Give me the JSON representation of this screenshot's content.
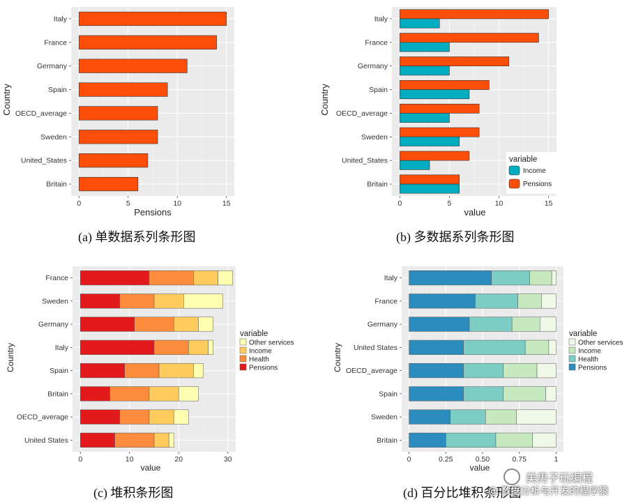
{
  "captions": {
    "a": "(a)  单数据系列条形图",
    "b": "(b)  多数据系列条形图",
    "c": "(c)  堆积条形图",
    "d": "(d)  百分比堆积条形图"
  },
  "watermark": {
    "line1": "美男子玩编程",
    "line2": "@ 数据分析与开发的程序猿"
  },
  "chart_data": [
    {
      "id": "a",
      "type": "bar",
      "orientation": "horizontal",
      "categories": [
        "Italy",
        "France",
        "Germany",
        "Spain",
        "OECD_average",
        "Sweden",
        "United_States",
        "Britain"
      ],
      "series": [
        {
          "name": "Pensions",
          "values": [
            15,
            14,
            11,
            9,
            8,
            8,
            7,
            6
          ]
        }
      ],
      "xlabel": "Pensions",
      "ylabel": "Country",
      "xlim": [
        -0.8,
        15.8
      ],
      "xticks": [
        0,
        5,
        10,
        15
      ],
      "xtick_labels": [
        "0",
        "5",
        "10",
        "15"
      ],
      "grid": true,
      "legend": "none",
      "colors": {
        "Pensions": "#fc4e08"
      }
    },
    {
      "id": "b",
      "type": "bar",
      "orientation": "horizontal",
      "grouped": true,
      "categories": [
        "Italy",
        "France",
        "Germany",
        "Spain",
        "OECD_average",
        "Sweden",
        "United_States",
        "Britain"
      ],
      "series": [
        {
          "name": "Income",
          "values": [
            4,
            5,
            5,
            7,
            5,
            6,
            3,
            6
          ]
        },
        {
          "name": "Pensions",
          "values": [
            15,
            14,
            11,
            9,
            8,
            8,
            7,
            6
          ]
        }
      ],
      "xlabel": "value",
      "ylabel": "Country",
      "xlim": [
        -0.8,
        15.8
      ],
      "xticks": [
        0,
        5,
        10,
        15
      ],
      "xtick_labels": [
        "0",
        "5",
        "10",
        "15"
      ],
      "grid": true,
      "legend": "bottom-right inside",
      "legend_title": "variable",
      "colors": {
        "Income": "#00adc1",
        "Pensions": "#fc4e08"
      }
    },
    {
      "id": "c",
      "type": "bar",
      "orientation": "horizontal",
      "stacked": true,
      "categories": [
        "France",
        "Sweden",
        "Germany",
        "Italy",
        "Spain",
        "Britain",
        "OECD_average",
        "United States"
      ],
      "series": [
        {
          "name": "Pensions",
          "values": [
            14,
            8,
            11,
            15,
            9,
            6,
            8,
            7
          ]
        },
        {
          "name": "Health",
          "values": [
            9,
            7,
            8,
            7,
            7,
            8,
            6,
            8
          ]
        },
        {
          "name": "Income",
          "values": [
            5,
            6,
            5,
            4,
            7,
            6,
            5,
            3
          ]
        },
        {
          "name": "Other services",
          "values": [
            3,
            8,
            3,
            1,
            2,
            4,
            3,
            1
          ]
        }
      ],
      "xlabel": "value",
      "ylabel": "Country",
      "xlim": [
        -1.6,
        31.6
      ],
      "xticks": [
        0,
        10,
        20,
        30
      ],
      "xtick_labels": [
        "0",
        "10",
        "20",
        "30"
      ],
      "grid": true,
      "legend": "right",
      "legend_title": "variable",
      "legend_order": [
        "Other services",
        "Income",
        "Health",
        "Pensions"
      ],
      "colors": {
        "Pensions": "#e31a1c",
        "Health": "#fd8d3c",
        "Income": "#fecc5c",
        "Other services": "#ffffb2"
      }
    },
    {
      "id": "d",
      "type": "bar",
      "orientation": "horizontal",
      "stacked": true,
      "percent": true,
      "categories": [
        "Italy",
        "France",
        "Germany",
        "United States",
        "OECD_average",
        "Spain",
        "Sweden",
        "Britain"
      ],
      "series": [
        {
          "name": "Pensions",
          "values": [
            0.56,
            0.45,
            0.41,
            0.37,
            0.37,
            0.37,
            0.28,
            0.25
          ]
        },
        {
          "name": "Health",
          "values": [
            0.26,
            0.29,
            0.29,
            0.42,
            0.27,
            0.27,
            0.24,
            0.34
          ]
        },
        {
          "name": "Income",
          "values": [
            0.15,
            0.16,
            0.19,
            0.16,
            0.23,
            0.29,
            0.21,
            0.25
          ]
        },
        {
          "name": "Other services",
          "values": [
            0.03,
            0.1,
            0.11,
            0.05,
            0.13,
            0.07,
            0.27,
            0.16
          ]
        }
      ],
      "xlabel": "value",
      "ylabel": "Country",
      "xlim": [
        -0.05,
        1.05
      ],
      "xticks": [
        0,
        0.25,
        0.5,
        0.75,
        1
      ],
      "xtick_labels": [
        "0",
        "0.25",
        "0.50",
        "0.75",
        "1"
      ],
      "grid": true,
      "legend": "right",
      "legend_title": "variable",
      "legend_order": [
        "Other services",
        "Income",
        "Health",
        "Pensions"
      ],
      "colors": {
        "Pensions": "#2b8cbe",
        "Health": "#7ccdc4",
        "Income": "#c7e9c0",
        "Other services": "#f0f9e8"
      }
    }
  ]
}
